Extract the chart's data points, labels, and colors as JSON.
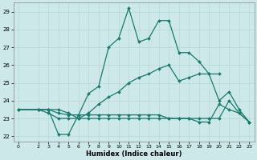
{
  "xlabel": "Humidex (Indice chaleur)",
  "background_color": "#cce8e8",
  "line_color": "#1a7a6e",
  "grid_color": "#b8d8d8",
  "xlim": [
    -0.5,
    23.5
  ],
  "ylim": [
    21.7,
    29.5
  ],
  "xticks": [
    0,
    2,
    3,
    4,
    5,
    6,
    7,
    8,
    9,
    10,
    11,
    12,
    13,
    14,
    15,
    16,
    17,
    18,
    19,
    20,
    21,
    22,
    23
  ],
  "yticks": [
    22,
    23,
    24,
    25,
    26,
    27,
    28,
    29
  ],
  "series": [
    {
      "x": [
        0,
        2,
        3,
        4,
        5,
        6,
        7,
        8,
        9,
        10,
        11,
        12,
        13,
        14,
        15,
        16,
        17,
        18,
        19,
        20,
        21,
        22,
        23
      ],
      "y": [
        23.5,
        23.5,
        23.5,
        22.1,
        22.1,
        23.2,
        24.4,
        24.8,
        27.0,
        27.5,
        29.2,
        27.3,
        27.5,
        28.5,
        28.5,
        26.7,
        26.7,
        26.2,
        25.5,
        25.5,
        null,
        null,
        null
      ]
    },
    {
      "x": [
        0,
        2,
        3,
        4,
        5,
        6,
        7,
        8,
        9,
        10,
        11,
        12,
        13,
        14,
        15,
        16,
        17,
        18,
        19,
        20,
        21,
        22,
        23
      ],
      "y": [
        23.5,
        23.5,
        23.5,
        23.5,
        23.3,
        23.0,
        23.3,
        23.8,
        24.2,
        24.5,
        25.0,
        25.3,
        25.5,
        25.8,
        26.0,
        25.1,
        25.3,
        25.5,
        25.5,
        24.0,
        24.5,
        23.5,
        22.8
      ]
    },
    {
      "x": [
        0,
        2,
        3,
        4,
        5,
        6,
        7,
        8,
        9,
        10,
        11,
        12,
        13,
        14,
        15,
        16,
        17,
        18,
        19,
        20,
        21,
        22,
        23
      ],
      "y": [
        23.5,
        23.5,
        23.5,
        23.3,
        23.2,
        23.2,
        23.2,
        23.2,
        23.2,
        23.2,
        23.2,
        23.2,
        23.2,
        23.2,
        23.0,
        23.0,
        23.0,
        22.8,
        22.8,
        23.8,
        23.5,
        23.3,
        22.8
      ]
    },
    {
      "x": [
        0,
        2,
        3,
        4,
        5,
        6,
        7,
        8,
        9,
        10,
        11,
        12,
        13,
        14,
        15,
        16,
        17,
        18,
        19,
        20,
        21,
        22,
        23
      ],
      "y": [
        23.5,
        23.5,
        23.3,
        23.0,
        23.0,
        23.0,
        23.0,
        23.0,
        23.0,
        23.0,
        23.0,
        23.0,
        23.0,
        23.0,
        23.0,
        23.0,
        23.0,
        23.0,
        23.0,
        23.0,
        24.0,
        23.3,
        22.8
      ]
    }
  ]
}
